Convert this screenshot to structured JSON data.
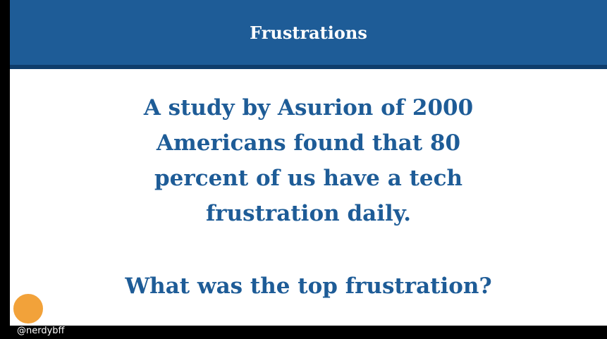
{
  "header": {
    "title": "Frustrations"
  },
  "body": {
    "lines": [
      "A study by Asurion of 2000",
      "Americans found that 80",
      "percent of us have a tech",
      "frustration daily."
    ],
    "question": "What was the top frustration?"
  },
  "footer": {
    "handle": "@nerdybff"
  }
}
